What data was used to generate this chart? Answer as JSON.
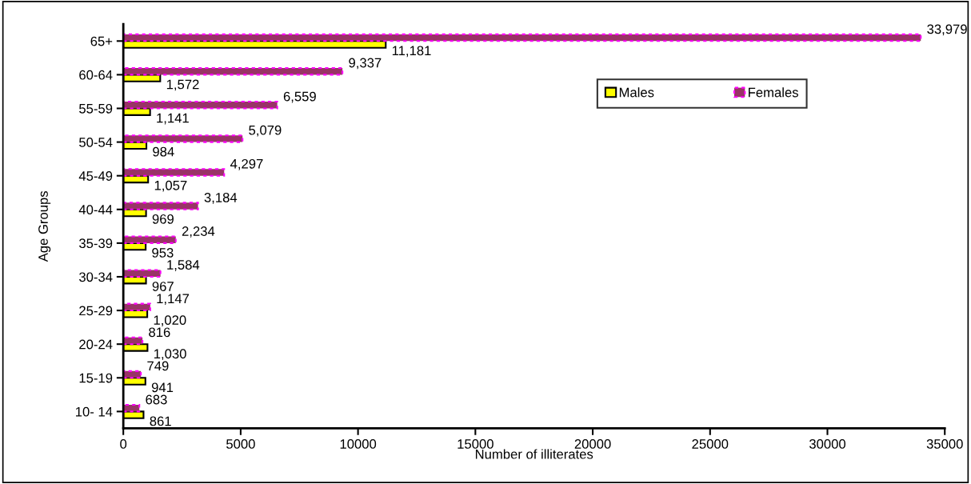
{
  "chart_data": {
    "type": "bar",
    "orientation": "horizontal",
    "xlabel": "Number of illiterates",
    "ylabel": "Age Groups",
    "categories": [
      "65+",
      "60-64",
      "55-59",
      "50-54",
      "45-49",
      "40-44",
      "35-39",
      "30-34",
      "25-29",
      "20-24",
      "15-19",
      "10- 14"
    ],
    "series": [
      {
        "name": "Males",
        "color": "#ffff00",
        "values": [
          11181,
          1572,
          1141,
          984,
          1057,
          969,
          953,
          967,
          1020,
          1030,
          941,
          861
        ],
        "value_labels": [
          "11,181",
          "1,572",
          "1,141",
          "984",
          "1,057",
          "969",
          "953",
          "967",
          "1,020",
          "1,030",
          "941",
          "861"
        ]
      },
      {
        "name": "Females",
        "color": "#993366",
        "values": [
          33979,
          9337,
          6559,
          5079,
          4297,
          3184,
          2234,
          1584,
          1147,
          816,
          749,
          683
        ],
        "value_labels": [
          "33,979",
          "9,337",
          "6,559",
          "5,079",
          "4,297",
          "3,184",
          "2,234",
          "1,584",
          "1,147",
          "816",
          "749",
          "683"
        ]
      }
    ],
    "xlim": [
      0,
      35000
    ],
    "xticks": [
      0,
      5000,
      10000,
      15000,
      20000,
      25000,
      30000,
      35000
    ],
    "grid": false,
    "legend": "top right"
  }
}
